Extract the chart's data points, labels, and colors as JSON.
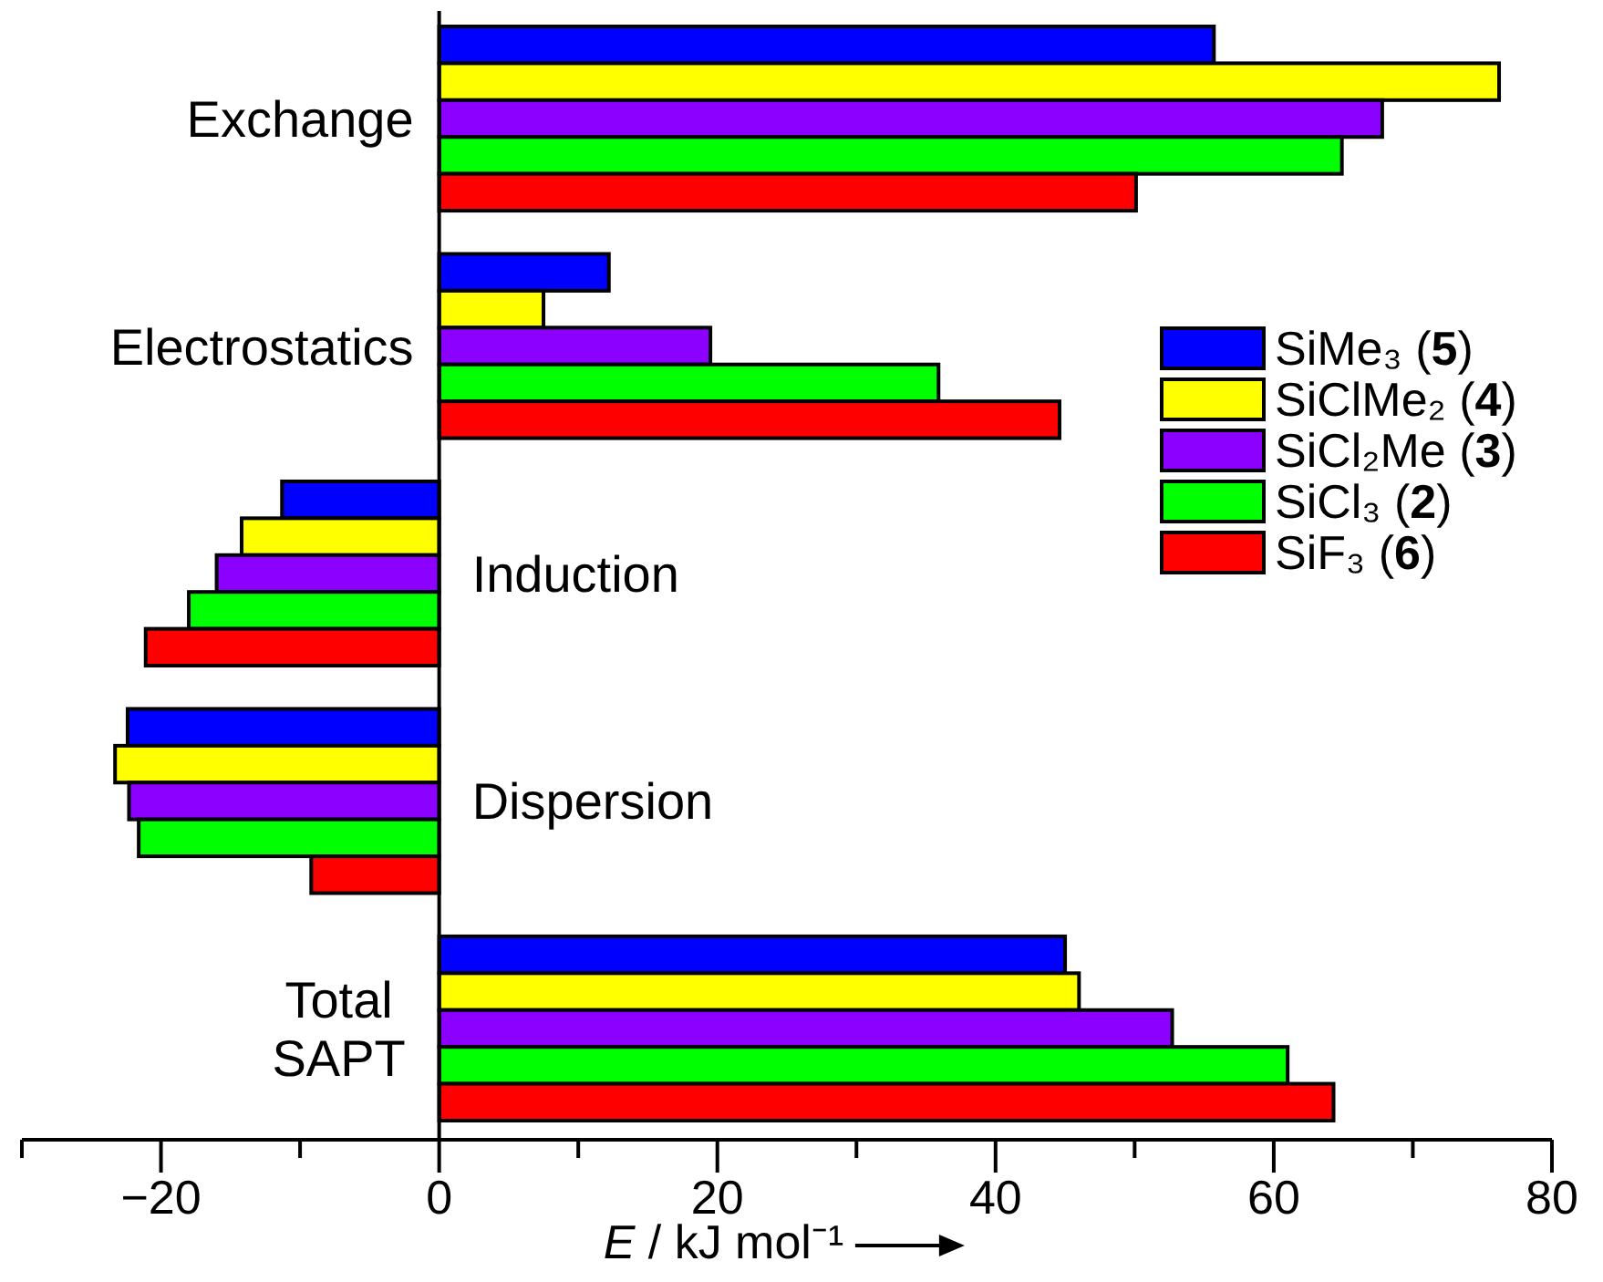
{
  "chart_data": {
    "type": "bar",
    "orientation": "horizontal",
    "xlabel": "E / kJ mol⁻¹",
    "categories": [
      "Exchange",
      "Electrostatics",
      "Induction",
      "Dispersion",
      "Total SAPT"
    ],
    "series": [
      {
        "name": "SiMe₃ (5)",
        "color": "#0000ff",
        "values": [
          55.7,
          12.2,
          -11.3,
          -22.4,
          45.0
        ]
      },
      {
        "name": "SiClMe₂ (4)",
        "color": "#ffff00",
        "values": [
          76.2,
          7.5,
          -14.2,
          -23.3,
          46.0
        ]
      },
      {
        "name": "SiCl₂Me (3)",
        "color": "#8b00ff",
        "values": [
          67.8,
          19.5,
          -16.0,
          -22.3,
          52.7
        ]
      },
      {
        "name": "SiCl₃ (2)",
        "color": "#00ff00",
        "values": [
          64.9,
          35.9,
          -18.0,
          -21.6,
          61.0
        ]
      },
      {
        "name": "SiF₃ (6)",
        "color": "#ff0000",
        "values": [
          50.1,
          44.6,
          -21.1,
          -9.2,
          64.3
        ]
      }
    ],
    "xlim": [
      -30,
      80
    ],
    "xticks": [
      {
        "value": -30,
        "label": null
      },
      -20,
      {
        "value": -10,
        "label": null
      },
      0,
      {
        "value": 10,
        "label": null
      },
      20,
      {
        "value": 30,
        "label": null
      },
      40,
      {
        "value": 50,
        "label": null
      },
      60,
      {
        "value": 70,
        "label": null
      },
      80
    ],
    "grid": false,
    "legend": "right"
  }
}
